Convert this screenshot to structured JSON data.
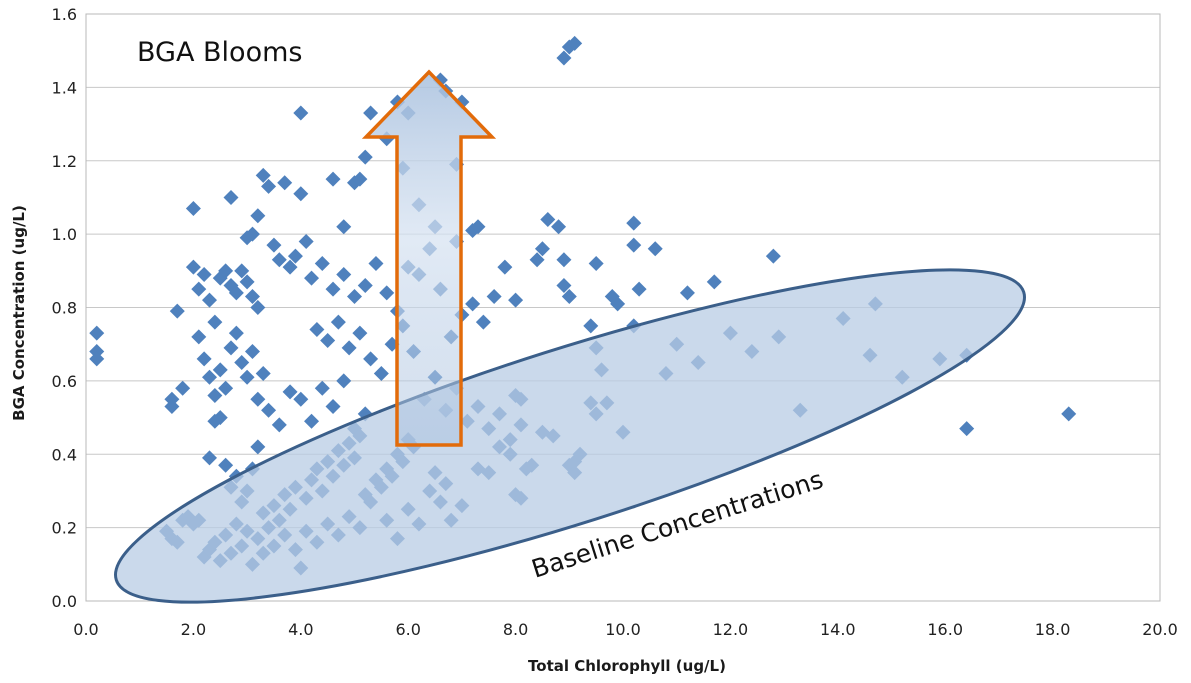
{
  "chart_data": {
    "type": "scatter",
    "title": "",
    "xlabel": "Total Chlorophyll (ug/L)",
    "ylabel": "BGA Concentration (ug/L)",
    "xlim": [
      0,
      20
    ],
    "ylim": [
      0,
      1.6
    ],
    "xticks": [
      "0.0",
      "2.0",
      "4.0",
      "6.0",
      "8.0",
      "10.0",
      "12.0",
      "14.0",
      "16.0",
      "18.0",
      "20.0"
    ],
    "yticks": [
      "0.0",
      "0.2",
      "0.4",
      "0.6",
      "0.8",
      "1.0",
      "1.2",
      "1.4",
      "1.6"
    ],
    "grid": "horizontal",
    "marker": "diamond",
    "color": "#4F81BD",
    "annotations": [
      {
        "text": "BGA Blooms"
      },
      {
        "text": "Baseline Concentrations"
      }
    ],
    "arrow": {
      "from": [
        6.4,
        0.42
      ],
      "to": [
        6.4,
        1.44
      ],
      "fill": "#A8C0DE",
      "stroke": "#E26B0A"
    },
    "baseline_region": {
      "center": [
        9.6,
        0.45
      ],
      "fill": "#B8CCE4",
      "stroke": "#3B5F8A"
    },
    "points": [
      [
        0.2,
        0.73
      ],
      [
        0.2,
        0.68
      ],
      [
        0.2,
        0.66
      ],
      [
        1.6,
        0.55
      ],
      [
        1.6,
        0.53
      ],
      [
        1.7,
        0.79
      ],
      [
        1.8,
        0.58
      ],
      [
        1.5,
        0.19
      ],
      [
        1.6,
        0.17
      ],
      [
        1.7,
        0.16
      ],
      [
        1.8,
        0.22
      ],
      [
        1.9,
        0.23
      ],
      [
        2.0,
        0.21
      ],
      [
        2.1,
        0.22
      ],
      [
        2.0,
        1.07
      ],
      [
        2.0,
        0.91
      ],
      [
        2.1,
        0.85
      ],
      [
        2.2,
        0.89
      ],
      [
        2.3,
        0.82
      ],
      [
        2.4,
        0.76
      ],
      [
        2.5,
        0.88
      ],
      [
        2.6,
        0.9
      ],
      [
        2.7,
        0.86
      ],
      [
        2.8,
        0.84
      ],
      [
        2.9,
        0.9
      ],
      [
        3.0,
        0.87
      ],
      [
        3.1,
        0.83
      ],
      [
        3.2,
        0.8
      ],
      [
        2.1,
        0.72
      ],
      [
        2.2,
        0.66
      ],
      [
        2.3,
        0.61
      ],
      [
        2.4,
        0.56
      ],
      [
        2.5,
        0.63
      ],
      [
        2.6,
        0.58
      ],
      [
        2.7,
        0.69
      ],
      [
        2.8,
        0.73
      ],
      [
        2.9,
        0.65
      ],
      [
        3.0,
        0.61
      ],
      [
        3.1,
        0.68
      ],
      [
        3.2,
        0.55
      ],
      [
        3.3,
        0.62
      ],
      [
        2.7,
        1.1
      ],
      [
        3.2,
        1.05
      ],
      [
        3.3,
        1.16
      ],
      [
        3.4,
        1.13
      ],
      [
        3.7,
        1.14
      ],
      [
        4.0,
        1.11
      ],
      [
        3.1,
        1.0
      ],
      [
        3.0,
        0.99
      ],
      [
        3.5,
        0.97
      ],
      [
        3.6,
        0.93
      ],
      [
        3.8,
        0.91
      ],
      [
        3.9,
        0.94
      ],
      [
        4.1,
        0.98
      ],
      [
        4.0,
        1.33
      ],
      [
        4.6,
        1.15
      ],
      [
        4.8,
        1.02
      ],
      [
        5.0,
        1.14
      ],
      [
        5.1,
        1.15
      ],
      [
        5.2,
        1.21
      ],
      [
        5.3,
        1.33
      ],
      [
        5.6,
        1.26
      ],
      [
        5.8,
        1.36
      ],
      [
        5.9,
        1.18
      ],
      [
        6.0,
        1.33
      ],
      [
        6.2,
        1.08
      ],
      [
        6.5,
        1.02
      ],
      [
        6.6,
        1.42
      ],
      [
        6.7,
        1.39
      ],
      [
        6.9,
        1.19
      ],
      [
        7.0,
        1.36
      ],
      [
        6.9,
        0.98
      ],
      [
        7.2,
        1.01
      ],
      [
        7.3,
        1.02
      ],
      [
        4.2,
        0.88
      ],
      [
        4.4,
        0.92
      ],
      [
        4.6,
        0.85
      ],
      [
        4.8,
        0.89
      ],
      [
        5.0,
        0.83
      ],
      [
        5.2,
        0.86
      ],
      [
        5.4,
        0.92
      ],
      [
        5.6,
        0.84
      ],
      [
        5.8,
        0.79
      ],
      [
        6.0,
        0.91
      ],
      [
        4.3,
        0.74
      ],
      [
        4.5,
        0.71
      ],
      [
        4.7,
        0.76
      ],
      [
        4.9,
        0.69
      ],
      [
        5.1,
        0.73
      ],
      [
        5.3,
        0.66
      ],
      [
        5.5,
        0.62
      ],
      [
        5.7,
        0.7
      ],
      [
        5.9,
        0.75
      ],
      [
        6.1,
        0.68
      ],
      [
        3.4,
        0.52
      ],
      [
        3.6,
        0.48
      ],
      [
        3.8,
        0.57
      ],
      [
        4.0,
        0.55
      ],
      [
        4.2,
        0.49
      ],
      [
        4.4,
        0.58
      ],
      [
        4.6,
        0.53
      ],
      [
        4.8,
        0.6
      ],
      [
        5.0,
        0.47
      ],
      [
        5.2,
        0.51
      ],
      [
        2.3,
        0.39
      ],
      [
        2.4,
        0.49
      ],
      [
        2.5,
        0.5
      ],
      [
        2.6,
        0.37
      ],
      [
        2.7,
        0.31
      ],
      [
        2.8,
        0.34
      ],
      [
        2.9,
        0.27
      ],
      [
        3.0,
        0.3
      ],
      [
        3.1,
        0.36
      ],
      [
        3.2,
        0.42
      ],
      [
        2.2,
        0.12
      ],
      [
        2.3,
        0.14
      ],
      [
        2.4,
        0.16
      ],
      [
        2.5,
        0.11
      ],
      [
        2.6,
        0.18
      ],
      [
        2.7,
        0.13
      ],
      [
        2.8,
        0.21
      ],
      [
        2.9,
        0.15
      ],
      [
        3.0,
        0.19
      ],
      [
        3.1,
        0.1
      ],
      [
        3.2,
        0.17
      ],
      [
        3.3,
        0.24
      ],
      [
        3.4,
        0.2
      ],
      [
        3.5,
        0.26
      ],
      [
        3.6,
        0.22
      ],
      [
        3.7,
        0.29
      ],
      [
        3.8,
        0.25
      ],
      [
        3.9,
        0.31
      ],
      [
        4.0,
        0.09
      ],
      [
        4.1,
        0.28
      ],
      [
        4.2,
        0.33
      ],
      [
        4.3,
        0.36
      ],
      [
        4.4,
        0.3
      ],
      [
        4.5,
        0.38
      ],
      [
        4.6,
        0.34
      ],
      [
        4.7,
        0.41
      ],
      [
        4.8,
        0.37
      ],
      [
        4.9,
        0.43
      ],
      [
        5.0,
        0.39
      ],
      [
        5.1,
        0.45
      ],
      [
        3.3,
        0.13
      ],
      [
        3.5,
        0.15
      ],
      [
        3.7,
        0.18
      ],
      [
        3.9,
        0.14
      ],
      [
        4.1,
        0.19
      ],
      [
        4.3,
        0.16
      ],
      [
        4.5,
        0.21
      ],
      [
        4.7,
        0.18
      ],
      [
        4.9,
        0.23
      ],
      [
        5.1,
        0.2
      ],
      [
        5.2,
        0.29
      ],
      [
        5.3,
        0.27
      ],
      [
        5.4,
        0.33
      ],
      [
        5.5,
        0.31
      ],
      [
        5.6,
        0.36
      ],
      [
        5.7,
        0.34
      ],
      [
        5.8,
        0.4
      ],
      [
        5.9,
        0.38
      ],
      [
        6.0,
        0.44
      ],
      [
        6.1,
        0.42
      ],
      [
        5.6,
        0.22
      ],
      [
        5.8,
        0.17
      ],
      [
        6.0,
        0.25
      ],
      [
        6.2,
        0.21
      ],
      [
        6.4,
        0.3
      ],
      [
        6.6,
        0.27
      ],
      [
        6.8,
        0.22
      ],
      [
        7.0,
        0.26
      ],
      [
        6.5,
        0.35
      ],
      [
        6.7,
        0.32
      ],
      [
        6.3,
        0.55
      ],
      [
        6.5,
        0.61
      ],
      [
        6.7,
        0.52
      ],
      [
        6.9,
        0.58
      ],
      [
        7.1,
        0.49
      ],
      [
        7.3,
        0.53
      ],
      [
        7.5,
        0.47
      ],
      [
        7.7,
        0.51
      ],
      [
        7.9,
        0.44
      ],
      [
        8.1,
        0.48
      ],
      [
        6.2,
        0.89
      ],
      [
        6.4,
        0.96
      ],
      [
        6.6,
        0.85
      ],
      [
        6.8,
        0.72
      ],
      [
        7.0,
        0.78
      ],
      [
        7.2,
        0.81
      ],
      [
        7.4,
        0.76
      ],
      [
        7.6,
        0.83
      ],
      [
        7.8,
        0.91
      ],
      [
        8.0,
        0.82
      ],
      [
        7.3,
        0.36
      ],
      [
        7.5,
        0.35
      ],
      [
        7.7,
        0.42
      ],
      [
        7.9,
        0.4
      ],
      [
        8.0,
        0.56
      ],
      [
        8.1,
        0.55
      ],
      [
        8.2,
        0.36
      ],
      [
        8.3,
        0.37
      ],
      [
        8.0,
        0.29
      ],
      [
        8.1,
        0.28
      ],
      [
        8.4,
        0.93
      ],
      [
        8.5,
        0.96
      ],
      [
        8.6,
        1.04
      ],
      [
        8.8,
        1.02
      ],
      [
        8.9,
        0.93
      ],
      [
        8.9,
        0.86
      ],
      [
        9.0,
        0.83
      ],
      [
        8.9,
        1.48
      ],
      [
        9.0,
        1.51
      ],
      [
        9.1,
        1.52
      ],
      [
        8.5,
        0.46
      ],
      [
        8.7,
        0.45
      ],
      [
        9.4,
        0.75
      ],
      [
        9.5,
        0.69
      ],
      [
        9.6,
        0.63
      ],
      [
        9.5,
        0.92
      ],
      [
        9.8,
        0.83
      ],
      [
        9.4,
        0.54
      ],
      [
        9.5,
        0.51
      ],
      [
        9.7,
        0.54
      ],
      [
        9.0,
        0.37
      ],
      [
        9.1,
        0.35
      ],
      [
        9.1,
        0.38
      ],
      [
        9.2,
        0.4
      ],
      [
        9.9,
        0.81
      ],
      [
        10.0,
        0.46
      ],
      [
        10.2,
        1.03
      ],
      [
        10.2,
        0.97
      ],
      [
        10.2,
        0.75
      ],
      [
        10.3,
        0.85
      ],
      [
        10.6,
        0.96
      ],
      [
        10.8,
        0.62
      ],
      [
        11.0,
        0.7
      ],
      [
        11.2,
        0.84
      ],
      [
        11.4,
        0.65
      ],
      [
        11.7,
        0.87
      ],
      [
        12.0,
        0.73
      ],
      [
        12.4,
        0.68
      ],
      [
        12.8,
        0.94
      ],
      [
        12.9,
        0.72
      ],
      [
        13.3,
        0.52
      ],
      [
        14.1,
        0.77
      ],
      [
        14.6,
        0.67
      ],
      [
        14.7,
        0.81
      ],
      [
        15.2,
        0.61
      ],
      [
        15.9,
        0.66
      ],
      [
        16.4,
        0.67
      ],
      [
        16.4,
        0.47
      ],
      [
        18.3,
        0.51
      ]
    ]
  }
}
